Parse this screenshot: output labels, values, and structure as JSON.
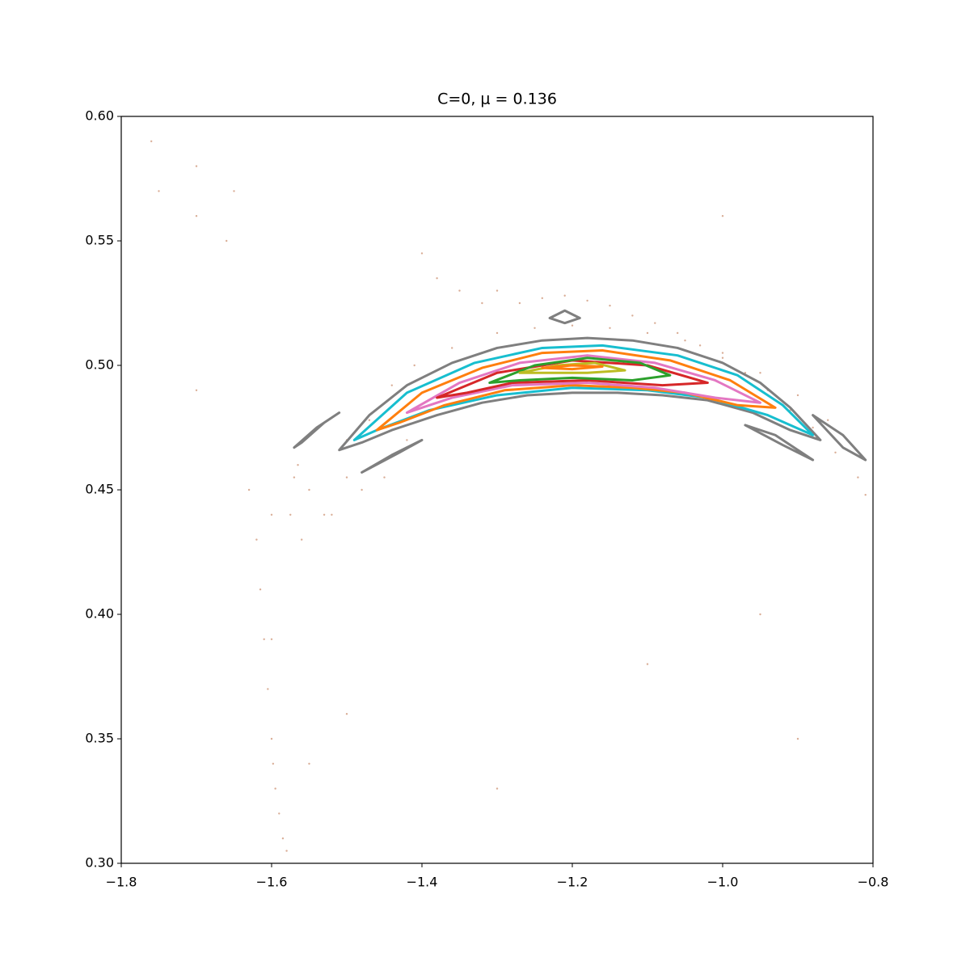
{
  "chart_data": {
    "type": "scatter",
    "title": "C=0, μ = 0.136",
    "xlim": [
      -1.8,
      -0.8
    ],
    "ylim": [
      0.3,
      0.6
    ],
    "xticks": [
      {
        "value": -1.8,
        "label": "−1.8"
      },
      {
        "value": -1.6,
        "label": "−1.6"
      },
      {
        "value": -1.4,
        "label": "−1.4"
      },
      {
        "value": -1.2,
        "label": "−1.2"
      },
      {
        "value": -1.0,
        "label": "−1.0"
      },
      {
        "value": -0.8,
        "label": "−0.8"
      }
    ],
    "yticks": [
      {
        "value": 0.3,
        "label": "0.30"
      },
      0.35,
      {
        "value": 0.4,
        "label": "0.40"
      },
      0.45,
      {
        "value": 0.5,
        "label": "0.50"
      },
      0.55,
      {
        "value": 0.6,
        "label": "0.60"
      }
    ],
    "series": [
      {
        "style": "points",
        "color": "#c98a6a",
        "x": [
          -1.75,
          -1.7,
          -1.66,
          -1.63,
          -1.62,
          -1.615,
          -1.61,
          -1.605,
          -1.6,
          -1.598,
          -1.595,
          -1.59,
          -1.585,
          -1.58,
          -1.575,
          -1.57,
          -1.565,
          -1.6,
          -1.55,
          -1.52,
          -1.5,
          -1.48,
          -1.45,
          -1.42,
          -1.38,
          -1.35,
          -1.32,
          -1.3,
          -1.27,
          -1.24,
          -1.21,
          -1.18,
          -1.15,
          -1.12,
          -1.09,
          -1.06,
          -1.03,
          -1.0,
          -0.97,
          -0.94,
          -0.91,
          -0.88,
          -0.85,
          -0.82,
          -0.81,
          -1.56,
          -1.53,
          -1.5,
          -1.47,
          -1.44,
          -1.41,
          -1.36,
          -1.3,
          -1.25,
          -1.2,
          -1.15,
          -1.1,
          -1.05,
          -1.0,
          -0.95,
          -0.9,
          -0.86,
          -1.7,
          -1.65,
          -1.4,
          -1.1,
          -0.95,
          -1.6,
          -1.5,
          -1.3,
          -0.9,
          -1.0,
          -1.7,
          -1.76,
          -1.55
        ],
        "y": [
          0.57,
          0.56,
          0.55,
          0.45,
          0.43,
          0.41,
          0.39,
          0.37,
          0.35,
          0.34,
          0.33,
          0.32,
          0.31,
          0.305,
          0.44,
          0.455,
          0.46,
          0.44,
          0.45,
          0.44,
          0.455,
          0.45,
          0.455,
          0.47,
          0.535,
          0.53,
          0.525,
          0.53,
          0.525,
          0.527,
          0.528,
          0.526,
          0.524,
          0.52,
          0.517,
          0.513,
          0.508,
          0.503,
          0.497,
          0.49,
          0.482,
          0.475,
          0.465,
          0.455,
          0.448,
          0.43,
          0.44,
          0.47,
          0.478,
          0.492,
          0.5,
          0.507,
          0.513,
          0.515,
          0.516,
          0.515,
          0.513,
          0.51,
          0.505,
          0.497,
          0.488,
          0.478,
          0.58,
          0.57,
          0.545,
          0.38,
          0.4,
          0.39,
          0.36,
          0.33,
          0.35,
          0.56,
          0.49,
          0.59,
          0.34
        ]
      },
      {
        "style": "loop",
        "color": "#7f7f7f",
        "x": [
          -1.51,
          -1.47,
          -1.42,
          -1.36,
          -1.3,
          -1.24,
          -1.18,
          -1.12,
          -1.06,
          -1.0,
          -0.95,
          -0.91,
          -0.87,
          -0.91,
          -0.96,
          -1.02,
          -1.08,
          -1.14,
          -1.2,
          -1.26,
          -1.32,
          -1.38,
          -1.44,
          -1.48
        ],
        "y": [
          0.466,
          0.48,
          0.492,
          0.501,
          0.507,
          0.51,
          0.511,
          0.51,
          0.507,
          0.501,
          0.493,
          0.483,
          0.47,
          0.474,
          0.481,
          0.486,
          0.488,
          0.489,
          0.489,
          0.488,
          0.485,
          0.48,
          0.474,
          0.469
        ]
      },
      {
        "style": "loop",
        "color": "#17becf",
        "x": [
          -1.49,
          -1.42,
          -1.33,
          -1.24,
          -1.16,
          -1.06,
          -0.98,
          -0.92,
          -0.88,
          -0.94,
          -1.02,
          -1.1,
          -1.2,
          -1.3,
          -1.39,
          -1.46
        ],
        "y": [
          0.47,
          0.489,
          0.501,
          0.507,
          0.508,
          0.504,
          0.496,
          0.484,
          0.472,
          0.48,
          0.487,
          0.49,
          0.491,
          0.488,
          0.482,
          0.474
        ]
      },
      {
        "style": "loop",
        "color": "#ff7f0e",
        "x": [
          -1.46,
          -1.4,
          -1.32,
          -1.24,
          -1.16,
          -1.07,
          -0.99,
          -0.93,
          -0.98,
          -1.05,
          -1.12,
          -1.2,
          -1.29,
          -1.37,
          -1.43
        ],
        "y": [
          0.474,
          0.489,
          0.499,
          0.505,
          0.506,
          0.502,
          0.494,
          0.483,
          0.484,
          0.489,
          0.491,
          0.492,
          0.49,
          0.484,
          0.477
        ]
      },
      {
        "style": "loop",
        "color": "#e377c2",
        "x": [
          -1.42,
          -1.35,
          -1.27,
          -1.18,
          -1.09,
          -1.01,
          -0.95,
          -1.01,
          -1.09,
          -1.18,
          -1.28,
          -1.36
        ],
        "y": [
          0.481,
          0.493,
          0.501,
          0.504,
          0.501,
          0.494,
          0.485,
          0.487,
          0.491,
          0.493,
          0.492,
          0.487
        ]
      },
      {
        "style": "loop",
        "color": "#d62728",
        "x": [
          -1.38,
          -1.3,
          -1.2,
          -1.1,
          -1.02,
          -1.08,
          -1.18,
          -1.28,
          -1.34
        ],
        "y": [
          0.487,
          0.497,
          0.502,
          0.5,
          0.493,
          0.492,
          0.494,
          0.493,
          0.489
        ]
      },
      {
        "style": "loop",
        "color": "#2ca02c",
        "x": [
          -1.31,
          -1.25,
          -1.18,
          -1.11,
          -1.07,
          -1.12,
          -1.2,
          -1.27
        ],
        "y": [
          0.493,
          0.5,
          0.503,
          0.501,
          0.496,
          0.494,
          0.495,
          0.494
        ]
      },
      {
        "style": "loop",
        "color": "#bcbd22",
        "x": [
          -1.27,
          -1.22,
          -1.17,
          -1.13,
          -1.18,
          -1.23
        ],
        "y": [
          0.497,
          0.5,
          0.501,
          0.498,
          0.497,
          0.497
        ]
      },
      {
        "style": "loop",
        "color": "#ff7f0e",
        "x": [
          -1.24,
          -1.2,
          -1.16,
          -1.2
        ],
        "y": [
          0.499,
          0.5,
          0.4995,
          0.4985
        ]
      },
      {
        "style": "loop",
        "color": "#7f7f7f",
        "x": [
          -1.23,
          -1.21,
          -1.19,
          -1.21
        ],
        "y": [
          0.519,
          0.522,
          0.519,
          0.517
        ]
      },
      {
        "style": "loop",
        "color": "#7f7f7f",
        "x": [
          -1.57,
          -1.54,
          -1.51,
          -1.53,
          -1.56
        ],
        "y": [
          0.467,
          0.475,
          0.481,
          0.477,
          0.469
        ]
      },
      {
        "style": "loop",
        "color": "#7f7f7f",
        "x": [
          -1.48,
          -1.44,
          -1.4,
          -1.43
        ],
        "y": [
          0.457,
          0.464,
          0.47,
          0.465
        ]
      },
      {
        "style": "loop",
        "color": "#7f7f7f",
        "x": [
          -0.97,
          -0.93,
          -0.88,
          -0.92
        ],
        "y": [
          0.476,
          0.472,
          0.462,
          0.468
        ]
      },
      {
        "style": "loop",
        "color": "#7f7f7f",
        "x": [
          -0.88,
          -0.84,
          -0.81,
          -0.84
        ],
        "y": [
          0.48,
          0.472,
          0.462,
          0.467
        ]
      }
    ]
  }
}
